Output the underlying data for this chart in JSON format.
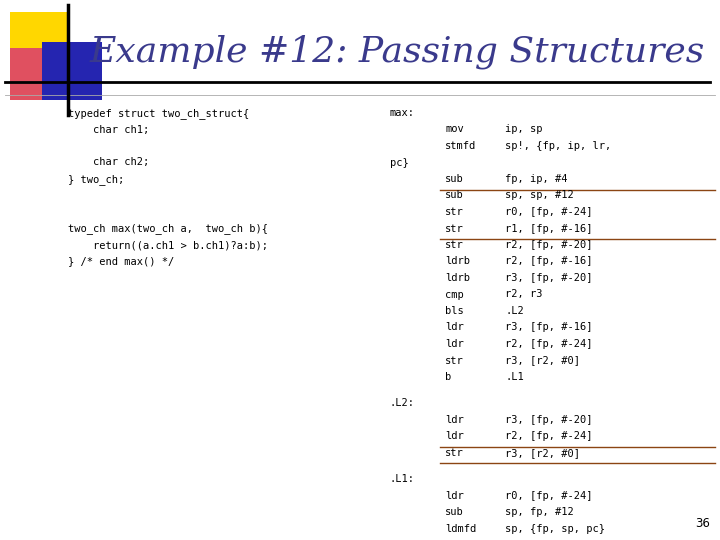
{
  "title": "Example #12: Passing Structures",
  "title_color": "#3a3a8c",
  "title_fontsize": 26,
  "bg_color": "#ffffff",
  "slide_number": "36",
  "mono_fs": 7.5,
  "left_code": [
    "typedef struct two_ch_struct{",
    "    char ch1;",
    "",
    "    char ch2;",
    "} two_ch;",
    "",
    "",
    "two_ch max(two_ch a,  two_ch b){",
    "    return((a.ch1 > b.ch1)?a:b);",
    "} /* end max() */"
  ],
  "assembly_lines": [
    {
      "label": "max:",
      "indent": 0,
      "instr": "",
      "op": ""
    },
    {
      "label": "",
      "indent": 1,
      "instr": "mov",
      "op": "ip, sp"
    },
    {
      "label": "",
      "indent": 1,
      "instr": "stmfd",
      "op": "sp!, {fp, ip, lr,"
    },
    {
      "label": "pc}",
      "indent": 0,
      "instr": "",
      "op": ""
    },
    {
      "label": "",
      "indent": 1,
      "instr": "sub",
      "op": "fp, ip, #4"
    },
    {
      "label": "",
      "indent": 1,
      "instr": "sub",
      "op": "sp, sp, #12",
      "sep_before": true
    },
    {
      "label": "",
      "indent": 1,
      "instr": "str",
      "op": "r0, [fp, #-24]"
    },
    {
      "label": "",
      "indent": 1,
      "instr": "str",
      "op": "r1, [fp, #-16]"
    },
    {
      "label": "",
      "indent": 1,
      "instr": "str",
      "op": "r2, [fp, #-20]",
      "sep_before": true
    },
    {
      "label": "",
      "indent": 1,
      "instr": "ldrb",
      "op": "r2, [fp, #-16]"
    },
    {
      "label": "",
      "indent": 1,
      "instr": "ldrb",
      "op": "r3, [fp, #-20]"
    },
    {
      "label": "",
      "indent": 1,
      "instr": "cmp",
      "op": "r2, r3"
    },
    {
      "label": "",
      "indent": 1,
      "instr": "bls",
      "op": ".L2"
    },
    {
      "label": "",
      "indent": 1,
      "instr": "ldr",
      "op": "r3, [fp, #-16]"
    },
    {
      "label": "",
      "indent": 1,
      "instr": "ldr",
      "op": "r2, [fp, #-24]"
    },
    {
      "label": "",
      "indent": 1,
      "instr": "str",
      "op": "r3, [r2, #0]"
    },
    {
      "label": "",
      "indent": 1,
      "instr": "b",
      "op": ".L1"
    },
    {
      "label": ".L2:",
      "indent": 0,
      "instr": "",
      "op": "",
      "blank_before": true
    },
    {
      "label": "",
      "indent": 1,
      "instr": "ldr",
      "op": "r3, [fp, #-20]"
    },
    {
      "label": "",
      "indent": 1,
      "instr": "ldr",
      "op": "r2, [fp, #-24]"
    },
    {
      "label": "",
      "indent": 1,
      "instr": "str",
      "op": "r3, [r2, #0]",
      "sep_before": true
    },
    {
      "label": ".L1:",
      "indent": 0,
      "instr": "",
      "op": "",
      "blank_before": true,
      "sep_before_label": true
    },
    {
      "label": "",
      "indent": 1,
      "instr": "ldr",
      "op": "r0, [fp, #-24]"
    },
    {
      "label": "",
      "indent": 1,
      "instr": "sub",
      "op": "sp, fp, #12"
    },
    {
      "label": "",
      "indent": 1,
      "instr": "ldmfd",
      "op": "sp, {fp, sp, pc}"
    }
  ],
  "sep_color": "#8B4513",
  "code_color": "#000000",
  "yellow_color": "#FFD700",
  "red_color": "#E05060",
  "blue_color": "#2525B0"
}
